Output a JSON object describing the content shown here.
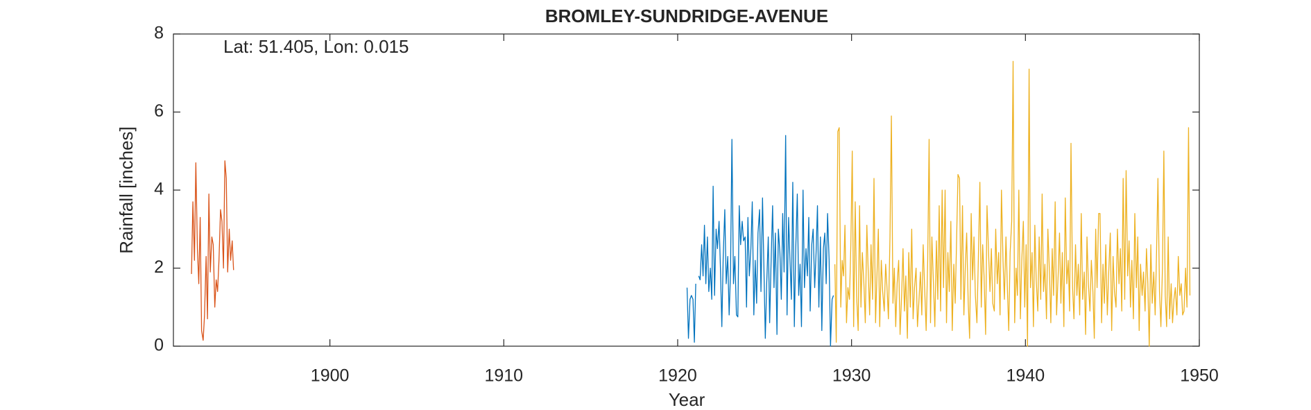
{
  "chart_data": {
    "type": "line",
    "title": "BROMLEY-SUNDRIDGE-AVENUE",
    "annotation": "Lat: 51.405, Lon: 0.015",
    "x_label": "Year",
    "y_label": "Rainfall [inches]",
    "xlim": [
      1891,
      1950
    ],
    "xticks": [
      1900,
      1910,
      1920,
      1930,
      1940,
      1950
    ],
    "ylim": [
      0,
      8
    ],
    "yticks": [
      0,
      2,
      4,
      6,
      8
    ],
    "grid": false,
    "box": true,
    "series": [
      {
        "color": "#d95319",
        "x": [
          1892.04,
          1892.12,
          1892.21,
          1892.29,
          1892.38,
          1892.46,
          1892.54,
          1892.62,
          1892.71,
          1892.79,
          1892.88,
          1892.96,
          1893.04,
          1893.12,
          1893.21,
          1893.29,
          1893.38,
          1893.46,
          1893.54,
          1893.62,
          1893.71,
          1893.79,
          1893.88,
          1893.96,
          1894.04,
          1894.12,
          1894.21,
          1894.29,
          1894.38,
          1894.46
        ],
        "values": [
          1.85,
          3.7,
          2.2,
          4.7,
          2.5,
          1.6,
          3.3,
          0.4,
          0.15,
          0.8,
          2.3,
          0.7,
          3.9,
          1.9,
          2.8,
          2.6,
          1.0,
          1.7,
          1.4,
          2.2,
          3.5,
          3.2,
          2.0,
          4.75,
          4.3,
          1.9,
          3.0,
          2.2,
          2.7,
          1.95
        ]
      },
      {
        "color": "#0072bd",
        "x": [
          1920.54,
          1920.62,
          1920.71,
          1920.79,
          1920.88,
          1920.96,
          1921.04,
          1921.12,
          1921.21,
          1921.29,
          1921.38,
          1921.46,
          1921.54,
          1921.62,
          1921.71,
          1921.79,
          1921.88,
          1921.96,
          1922.04,
          1922.12,
          1922.21,
          1922.29,
          1922.38,
          1922.46,
          1922.54,
          1922.62,
          1922.71,
          1922.79,
          1922.88,
          1922.96,
          1923.04,
          1923.12,
          1923.21,
          1923.29,
          1923.38,
          1923.46,
          1923.54,
          1923.62,
          1923.71,
          1923.79,
          1923.88,
          1923.96,
          1924.04,
          1924.12,
          1924.21,
          1924.29,
          1924.38,
          1924.46,
          1924.54,
          1924.62,
          1924.71,
          1924.79,
          1924.88,
          1924.96,
          1925.04,
          1925.12,
          1925.21,
          1925.29,
          1925.38,
          1925.46,
          1925.54,
          1925.62,
          1925.71,
          1925.79,
          1925.88,
          1925.96,
          1926.04,
          1926.12,
          1926.21,
          1926.29,
          1926.38,
          1926.46,
          1926.54,
          1926.62,
          1926.71,
          1926.79,
          1926.88,
          1926.96,
          1927.04,
          1927.12,
          1927.21,
          1927.29,
          1927.38,
          1927.46,
          1927.54,
          1927.62,
          1927.71,
          1927.79,
          1927.88,
          1927.96,
          1928.04,
          1928.12,
          1928.21,
          1928.29,
          1928.38,
          1928.46,
          1928.54,
          1928.62,
          1928.71,
          1928.79,
          1928.88,
          1928.96
        ],
        "values": [
          1.5,
          0.2,
          1.2,
          1.3,
          1.2,
          0.1,
          1.6,
          null,
          1.8,
          1.7,
          2.6,
          1.8,
          3.1,
          1.6,
          2.8,
          1.4,
          2.0,
          1.2,
          4.1,
          1.3,
          3.0,
          2.5,
          3.2,
          2.0,
          0.5,
          2.3,
          3.5,
          1.6,
          2.3,
          0.8,
          1.9,
          5.3,
          1.6,
          2.3,
          0.8,
          0.75,
          3.6,
          2.6,
          3.2,
          2.7,
          2.8,
          1.0,
          3.3,
          1.8,
          2.5,
          3.7,
          0.8,
          2.2,
          1.1,
          2.9,
          3.5,
          1.4,
          3.8,
          2.0,
          0.2,
          1.6,
          2.8,
          0.6,
          2.3,
          3.6,
          1.5,
          2.9,
          0.3,
          3.0,
          2.4,
          1.2,
          3.4,
          1.9,
          5.4,
          0.8,
          3.3,
          2.2,
          1.2,
          4.2,
          0.5,
          2.5,
          3.9,
          1.3,
          2.1,
          0.5,
          4.0,
          1.5,
          2.5,
          1.8,
          3.3,
          0.9,
          2.6,
          3.0,
          1.5,
          2.4,
          3.6,
          1.0,
          2.8,
          0.4,
          2.5,
          2.9,
          1.6,
          3.4,
          2.2,
          0.0,
          1.2,
          1.3
        ]
      },
      {
        "color": "#edb120",
        "x": [
          1929.04,
          1929.12,
          1929.21,
          1929.29,
          1929.38,
          1929.46,
          1929.54,
          1929.62,
          1929.71,
          1929.79,
          1929.88,
          1929.96,
          1930.04,
          1930.12,
          1930.21,
          1930.29,
          1930.38,
          1930.46,
          1930.54,
          1930.62,
          1930.71,
          1930.79,
          1930.88,
          1930.96,
          1931.04,
          1931.12,
          1931.21,
          1931.29,
          1931.38,
          1931.46,
          1931.54,
          1931.62,
          1931.71,
          1931.79,
          1931.88,
          1931.96,
          1932.04,
          1932.12,
          1932.21,
          1932.29,
          1932.38,
          1932.46,
          1932.54,
          1932.62,
          1932.71,
          1932.79,
          1932.88,
          1932.96,
          1933.04,
          1933.12,
          1933.21,
          1933.29,
          1933.38,
          1933.46,
          1933.54,
          1933.62,
          1933.71,
          1933.79,
          1933.88,
          1933.96,
          1934.04,
          1934.12,
          1934.21,
          1934.29,
          1934.38,
          1934.46,
          1934.54,
          1934.62,
          1934.71,
          1934.79,
          1934.88,
          1934.96,
          1935.04,
          1935.12,
          1935.21,
          1935.29,
          1935.38,
          1935.46,
          1935.54,
          1935.62,
          1935.71,
          1935.79,
          1935.88,
          1935.96,
          1936.04,
          1936.12,
          1936.21,
          1936.29,
          1936.38,
          1936.46,
          1936.54,
          1936.62,
          1936.71,
          1936.79,
          1936.88,
          1936.96,
          1937.04,
          1937.12,
          1937.21,
          1937.29,
          1937.38,
          1937.46,
          1937.54,
          1937.62,
          1937.71,
          1937.79,
          1937.88,
          1937.96,
          1938.04,
          1938.12,
          1938.21,
          1938.29,
          1938.38,
          1938.46,
          1938.54,
          1938.62,
          1938.71,
          1938.79,
          1938.88,
          1938.96,
          1939.04,
          1939.12,
          1939.21,
          1939.29,
          1939.38,
          1939.46,
          1939.54,
          1939.62,
          1939.71,
          1939.79,
          1939.88,
          1939.96,
          1940.04,
          1940.12,
          1940.21,
          1940.29,
          1940.38,
          1940.46,
          1940.54,
          1940.62,
          1940.71,
          1940.79,
          1940.88,
          1940.96,
          1941.04,
          1941.12,
          1941.21,
          1941.29,
          1941.38,
          1941.46,
          1941.54,
          1941.62,
          1941.71,
          1941.79,
          1941.88,
          1941.96,
          1942.04,
          1942.12,
          1942.21,
          1942.29,
          1942.38,
          1942.46,
          1942.54,
          1942.62,
          1942.71,
          1942.79,
          1942.88,
          1942.96,
          1943.04,
          1943.12,
          1943.21,
          1943.29,
          1943.38,
          1943.46,
          1943.54,
          1943.62,
          1943.71,
          1943.79,
          1943.88,
          1943.96,
          1944.04,
          1944.12,
          1944.21,
          1944.29,
          1944.38,
          1944.46,
          1944.54,
          1944.62,
          1944.71,
          1944.79,
          1944.88,
          1944.96,
          1945.04,
          1945.12,
          1945.21,
          1945.29,
          1945.38,
          1945.46,
          1945.54,
          1945.62,
          1945.71,
          1945.79,
          1945.88,
          1945.96,
          1946.04,
          1946.12,
          1946.21,
          1946.29,
          1946.38,
          1946.46,
          1946.54,
          1946.62,
          1946.71,
          1946.79,
          1946.88,
          1946.96,
          1947.04,
          1947.12,
          1947.21,
          1947.29,
          1947.38,
          1947.46,
          1947.54,
          1947.62,
          1947.71,
          1947.79,
          1947.88,
          1947.96,
          1948.04,
          1948.12,
          1948.21,
          1948.29,
          1948.38,
          1948.46,
          1948.54,
          1948.62,
          1948.71,
          1948.79,
          1948.88,
          1948.96,
          1949.04,
          1949.12,
          1949.21,
          1949.29,
          1949.38,
          1949.46
        ],
        "values": [
          2.1,
          0.1,
          5.5,
          5.6,
          1.0,
          2.2,
          1.8,
          3.1,
          0.6,
          1.5,
          1.2,
          2.6,
          5.0,
          0.5,
          3.7,
          1.3,
          0.4,
          3.6,
          1.0,
          2.4,
          1.6,
          0.6,
          3.1,
          1.9,
          0.8,
          2.6,
          1.2,
          4.3,
          0.6,
          1.8,
          3.0,
          0.5,
          2.2,
          1.4,
          0.9,
          2.1,
          1.5,
          0.7,
          2.8,
          5.9,
          1.1,
          2.0,
          0.5,
          1.6,
          2.2,
          0.3,
          1.3,
          2.5,
          0.9,
          1.8,
          0.2,
          2.4,
          1.0,
          3.0,
          0.7,
          1.5,
          2.0,
          0.5,
          1.2,
          1.9,
          0.8,
          2.6,
          1.4,
          0.4,
          2.2,
          5.3,
          0.6,
          2.8,
          1.6,
          0.5,
          2.7,
          1.2,
          3.6,
          0.9,
          4.0,
          1.5,
          4.0,
          0.6,
          2.4,
          1.4,
          3.2,
          0.4,
          2.1,
          1.1,
          2.7,
          4.4,
          4.3,
          1.2,
          3.6,
          0.8,
          2.0,
          2.9,
          1.1,
          0.2,
          3.4,
          1.7,
          2.8,
          1.3,
          0.6,
          2.2,
          4.2,
          1.0,
          2.6,
          1.8,
          0.3,
          3.6,
          2.4,
          1.4,
          2.5,
          1.1,
          0.9,
          3.0,
          1.6,
          2.4,
          0.8,
          4.0,
          2.2,
          1.2,
          2.8,
          1.5,
          0.4,
          2.4,
          3.2,
          7.3,
          0.6,
          2.0,
          1.3,
          4.0,
          0.7,
          2.2,
          3.2,
          1.0,
          2.6,
          0.0,
          7.1,
          1.5,
          2.4,
          0.5,
          3.1,
          1.7,
          0.9,
          2.8,
          1.2,
          3.9,
          1.4,
          2.1,
          0.7,
          3.0,
          1.9,
          0.6,
          2.5,
          1.3,
          3.7,
          0.8,
          1.8,
          2.9,
          1.1,
          2.4,
          0.5,
          3.8,
          1.6,
          2.2,
          0.9,
          5.2,
          1.5,
          0.7,
          2.6,
          1.3,
          2.1,
          0.8,
          3.4,
          1.2,
          1.9,
          0.3,
          2.8,
          1.6,
          0.9,
          2.2,
          1.4,
          0.2,
          3.0,
          1.5,
          3.4,
          3.4,
          0.6,
          2.1,
          1.1,
          2.6,
          0.8,
          1.9,
          2.9,
          0.4,
          2.3,
          1.4,
          1.0,
          3.0,
          1.6,
          2.5,
          0.9,
          4.3,
          1.2,
          4.5,
          1.8,
          2.7,
          1.0,
          2.2,
          0.7,
          3.4,
          1.5,
          2.8,
          0.4,
          2.1,
          1.3,
          1.9,
          0.9,
          2.5,
          1.6,
          0.0,
          2.6,
          1.1,
          1.9,
          0.8,
          2.4,
          4.3,
          1.4,
          0.5,
          2.0,
          5.0,
          1.3,
          0.5,
          2.8,
          0.7,
          1.6,
          0.6,
          1.2,
          1.5,
          0.8,
          2.3,
          1.3,
          1.6,
          0.8,
          0.9,
          2.0,
          1.0,
          5.6,
          1.3
        ]
      }
    ]
  }
}
